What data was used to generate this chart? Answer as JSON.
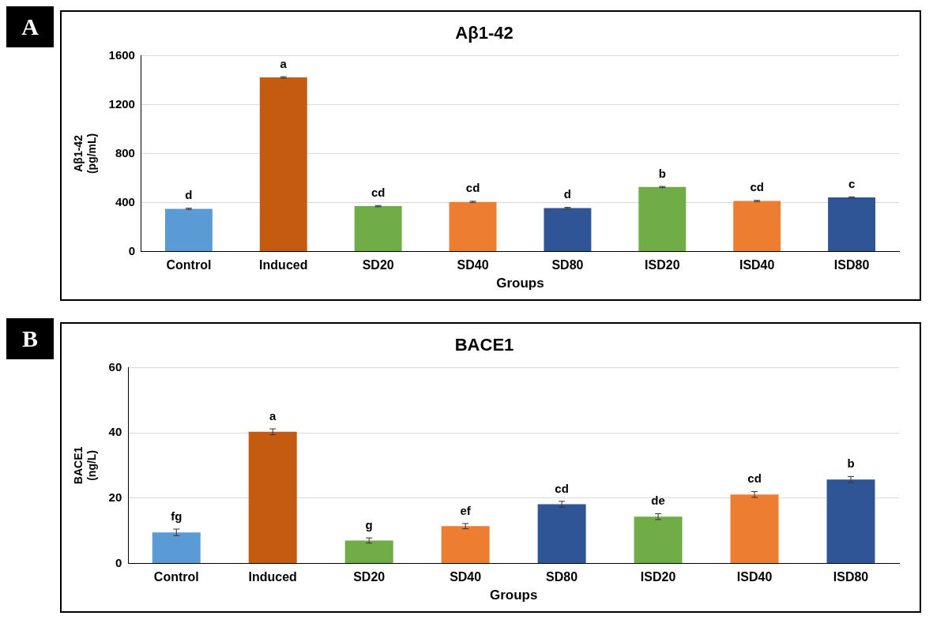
{
  "chart_data": [
    {
      "type": "bar",
      "title": "Aβ1-42",
      "xlabel": "Groups",
      "ylabel": "Aβ1-42\n(pg/mL)",
      "categories": [
        "Control",
        "Induced",
        "SD20",
        "SD40",
        "SD80",
        "ISD20",
        "ISD40",
        "ISD80"
      ],
      "values": [
        348,
        1422,
        370,
        405,
        355,
        526,
        412,
        441
      ],
      "errors": [
        5,
        6,
        5,
        5,
        5,
        5,
        5,
        5
      ],
      "colors": [
        "#5b9bd5",
        "#c55a11",
        "#70ad47",
        "#ed7d31",
        "#2f5597",
        "#70ad47",
        "#ed7d31",
        "#2f5597"
      ],
      "ylim": [
        0,
        1600
      ],
      "yticks": [
        0,
        400,
        800,
        1200,
        1600
      ],
      "grid": "y",
      "annotations": [
        "A",
        {
          "text": "d",
          "x": "Control",
          "y": 353
        },
        {
          "text": "a",
          "x": "Induced",
          "y": 1428
        },
        {
          "text": "cd",
          "x": "SD20",
          "y": 375
        },
        {
          "text": "cd",
          "x": "SD40",
          "y": 410
        },
        {
          "text": "d",
          "x": "SD80",
          "y": 360
        },
        {
          "text": "b",
          "x": "ISD20",
          "y": 531
        },
        {
          "text": "cd",
          "x": "ISD40",
          "y": 417
        },
        {
          "text": "c",
          "x": "ISD80",
          "y": 446
        }
      ]
    },
    {
      "type": "bar",
      "title": "BACE1",
      "xlabel": "Groups",
      "ylabel": "BACE1\n(ng/L)",
      "categories": [
        "Control",
        "Induced",
        "SD20",
        "SD40",
        "SD80",
        "ISD20",
        "ISD40",
        "ISD80"
      ],
      "values": [
        9.5,
        40.3,
        7.0,
        11.4,
        18.1,
        14.3,
        21.1,
        25.7
      ],
      "errors": [
        1,
        0.9,
        0.8,
        0.8,
        0.9,
        0.9,
        0.9,
        0.9
      ],
      "colors": [
        "#5b9bd5",
        "#c55a11",
        "#70ad47",
        "#ed7d31",
        "#2f5597",
        "#70ad47",
        "#ed7d31",
        "#2f5597"
      ],
      "ylim": [
        0,
        60
      ],
      "yticks": [
        0,
        20,
        40,
        60
      ],
      "grid": "y",
      "annotations": [
        "B",
        {
          "text": "fg",
          "x": "Control",
          "y": 10.5
        },
        {
          "text": "a",
          "x": "Induced",
          "y": 41.2
        },
        {
          "text": "g",
          "x": "SD20",
          "y": 7.8
        },
        {
          "text": "ef",
          "x": "SD40",
          "y": 12.2
        },
        {
          "text": "cd",
          "x": "SD80",
          "y": 19.0
        },
        {
          "text": "de",
          "x": "ISD20",
          "y": 15.2
        },
        {
          "text": "cd",
          "x": "ISD40",
          "y": 22.0
        },
        {
          "text": "b",
          "x": "ISD80",
          "y": 26.6
        }
      ]
    }
  ]
}
